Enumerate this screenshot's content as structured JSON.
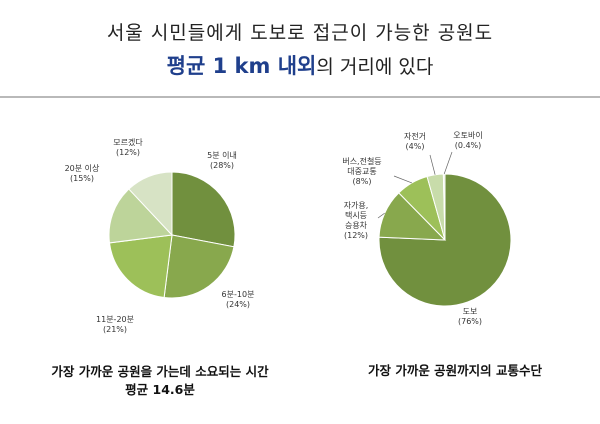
{
  "title": {
    "line1": "서울 시민들에게 도보로 접근이 가능한 공원도",
    "line2_highlight": "평균 1 km 내외",
    "line2_rest": "의 거리에 있다"
  },
  "chart_data": [
    {
      "type": "pie",
      "caption": "가장 가까운 공원을 가는데 소요되는 시간",
      "subcaption": "평균 14.6분",
      "slices": [
        {
          "label": "5분 이내",
          "value": 28,
          "pct": "(28%)",
          "color": "#71903e"
        },
        {
          "label": "6분-10분",
          "value": 24,
          "pct": "(24%)",
          "color": "#88a84d"
        },
        {
          "label": "11분-20분",
          "value": 21,
          "pct": "(21%)",
          "color": "#9dc059"
        },
        {
          "label": "20분 이상",
          "value": 15,
          "pct": "(15%)",
          "color": "#bdd49a"
        },
        {
          "label": "모르겠다",
          "value": 12,
          "pct": "(12%)",
          "color": "#d7e3c5"
        }
      ]
    },
    {
      "type": "pie",
      "caption": "가장 가까운 공원까지의 교통수단",
      "slices": [
        {
          "label": "도보",
          "value": 76,
          "pct": "(76%)",
          "color": "#71903e"
        },
        {
          "label": "자가용,\n택시등\n승용차",
          "value": 12,
          "pct": "(12%)",
          "color": "#88a84d"
        },
        {
          "label": "버스,전철등\n대중교통",
          "value": 8,
          "pct": "(8%)",
          "color": "#9dc059"
        },
        {
          "label": "자전거",
          "value": 4,
          "pct": "(4%)",
          "color": "#c8dcaa"
        },
        {
          "label": "오토바이",
          "value": 0.4,
          "pct": "(0.4%)",
          "color": "#e4eddb"
        }
      ]
    }
  ]
}
